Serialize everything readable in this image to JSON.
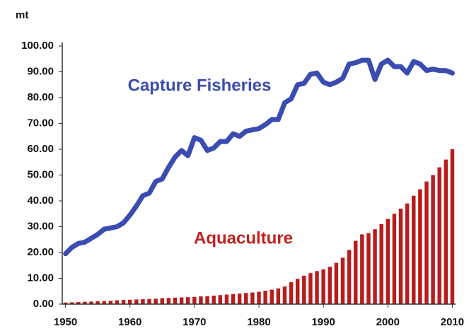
{
  "chart_data": {
    "type": "bar",
    "y_label": "mt",
    "annotations": [
      "Capture Fisheries",
      "Aquaculture"
    ],
    "x": [
      1950,
      1951,
      1952,
      1953,
      1954,
      1955,
      1956,
      1957,
      1958,
      1959,
      1960,
      1961,
      1962,
      1963,
      1964,
      1965,
      1966,
      1967,
      1968,
      1969,
      1970,
      1971,
      1972,
      1973,
      1974,
      1975,
      1976,
      1977,
      1978,
      1979,
      1980,
      1981,
      1982,
      1983,
      1984,
      1985,
      1986,
      1987,
      1988,
      1989,
      1990,
      1991,
      1992,
      1993,
      1994,
      1995,
      1996,
      1997,
      1998,
      1999,
      2000,
      2001,
      2002,
      2003,
      2004,
      2005,
      2006,
      2007,
      2008,
      2009,
      2010
    ],
    "series": [
      {
        "name": "Aquaculture",
        "type": "bar",
        "color": "#b81d1d",
        "values": [
          0.6,
          0.7,
          0.8,
          0.9,
          1.0,
          1.1,
          1.2,
          1.3,
          1.5,
          1.6,
          1.7,
          1.8,
          1.9,
          2.0,
          2.1,
          2.3,
          2.4,
          2.5,
          2.6,
          2.7,
          2.8,
          3.0,
          3.1,
          3.3,
          3.5,
          3.7,
          3.9,
          4.1,
          4.3,
          4.5,
          4.8,
          5.2,
          5.6,
          6.1,
          6.8,
          8.5,
          9.8,
          11,
          12,
          12.8,
          13.5,
          14.5,
          16,
          18,
          21,
          24.5,
          27,
          27.5,
          29,
          31,
          33,
          35,
          37,
          39,
          42,
          44.5,
          47.5,
          50,
          53,
          56,
          60
        ]
      },
      {
        "name": "Capture Fisheries",
        "type": "line",
        "color": "#3b4cb0",
        "values": [
          19.5,
          22,
          23.5,
          24,
          25.5,
          27,
          29,
          29.5,
          30,
          31.5,
          34.5,
          38,
          42,
          43,
          47.5,
          48.5,
          53,
          57,
          59.5,
          57.5,
          64.5,
          63.5,
          59.5,
          60.5,
          63,
          63,
          66,
          65,
          67,
          67.5,
          68,
          69.5,
          71.5,
          71.5,
          78,
          79.5,
          85,
          85.5,
          89,
          89.5,
          86,
          85,
          86,
          87.5,
          93,
          93.5,
          94.5,
          94.5,
          87,
          93,
          94.5,
          92,
          92,
          89.5,
          94,
          93,
          90.5,
          91,
          90.5,
          90.5,
          89.5
        ]
      }
    ],
    "xlim": [
      1949.5,
      2010.5
    ],
    "xticks": [
      1950,
      1960,
      1970,
      1980,
      1990,
      2000,
      2010
    ],
    "ylim": [
      0,
      100
    ],
    "yticks": [
      {
        "value": 0,
        "label": "0.00"
      },
      {
        "value": 10,
        "label": "10.00"
      },
      {
        "value": 20,
        "label": "20.00"
      },
      {
        "value": 30,
        "label": "30.00"
      },
      {
        "value": 40,
        "label": "40.00"
      },
      {
        "value": 50,
        "label": "50.00"
      },
      {
        "value": 60,
        "label": "60.00"
      },
      {
        "value": 70,
        "label": "70.00"
      },
      {
        "value": 80,
        "label": "80.00"
      },
      {
        "value": 90,
        "label": "90.00"
      },
      {
        "value": 100,
        "label": "100.00"
      }
    ],
    "grid": false
  }
}
